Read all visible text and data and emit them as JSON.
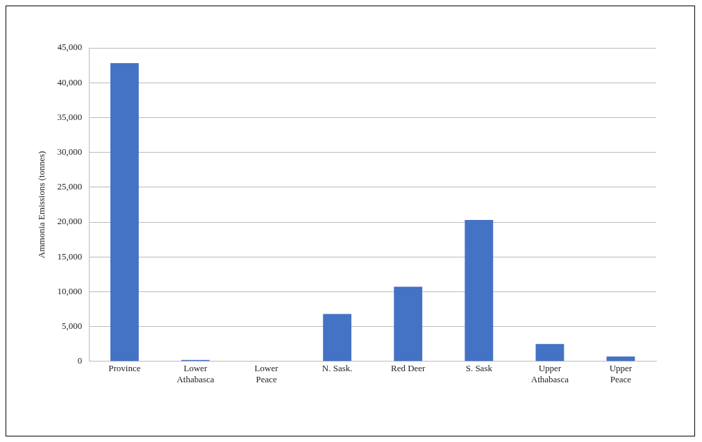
{
  "chart_data": {
    "type": "bar",
    "ylabel": "Ammonia Emissions (tonnes)",
    "categories": [
      "Province",
      "Lower\nAthabasca",
      "Lower\nPeace",
      "N. Sask.",
      "Red Deer",
      "S. Sask",
      "Upper\nAthabasca",
      "Upper\nPeace"
    ],
    "values": [
      42800,
      200,
      null,
      6800,
      10700,
      20300,
      2500,
      700
    ],
    "color": "#4472c4",
    "ylim": [
      0,
      45000
    ],
    "yticks": [
      0,
      {
        "value": 5000,
        "label": "5,000"
      },
      {
        "value": 10000,
        "label": "10,000"
      },
      {
        "value": 15000,
        "label": "15,000"
      },
      {
        "value": 20000,
        "label": "20,000"
      },
      {
        "value": 25000,
        "label": "25,000"
      },
      {
        "value": 30000,
        "label": "30,000"
      },
      {
        "value": 35000,
        "label": "35,000"
      },
      {
        "value": 40000,
        "label": "40,000"
      },
      {
        "value": 45000,
        "label": "45,000"
      }
    ],
    "grid": "y"
  }
}
